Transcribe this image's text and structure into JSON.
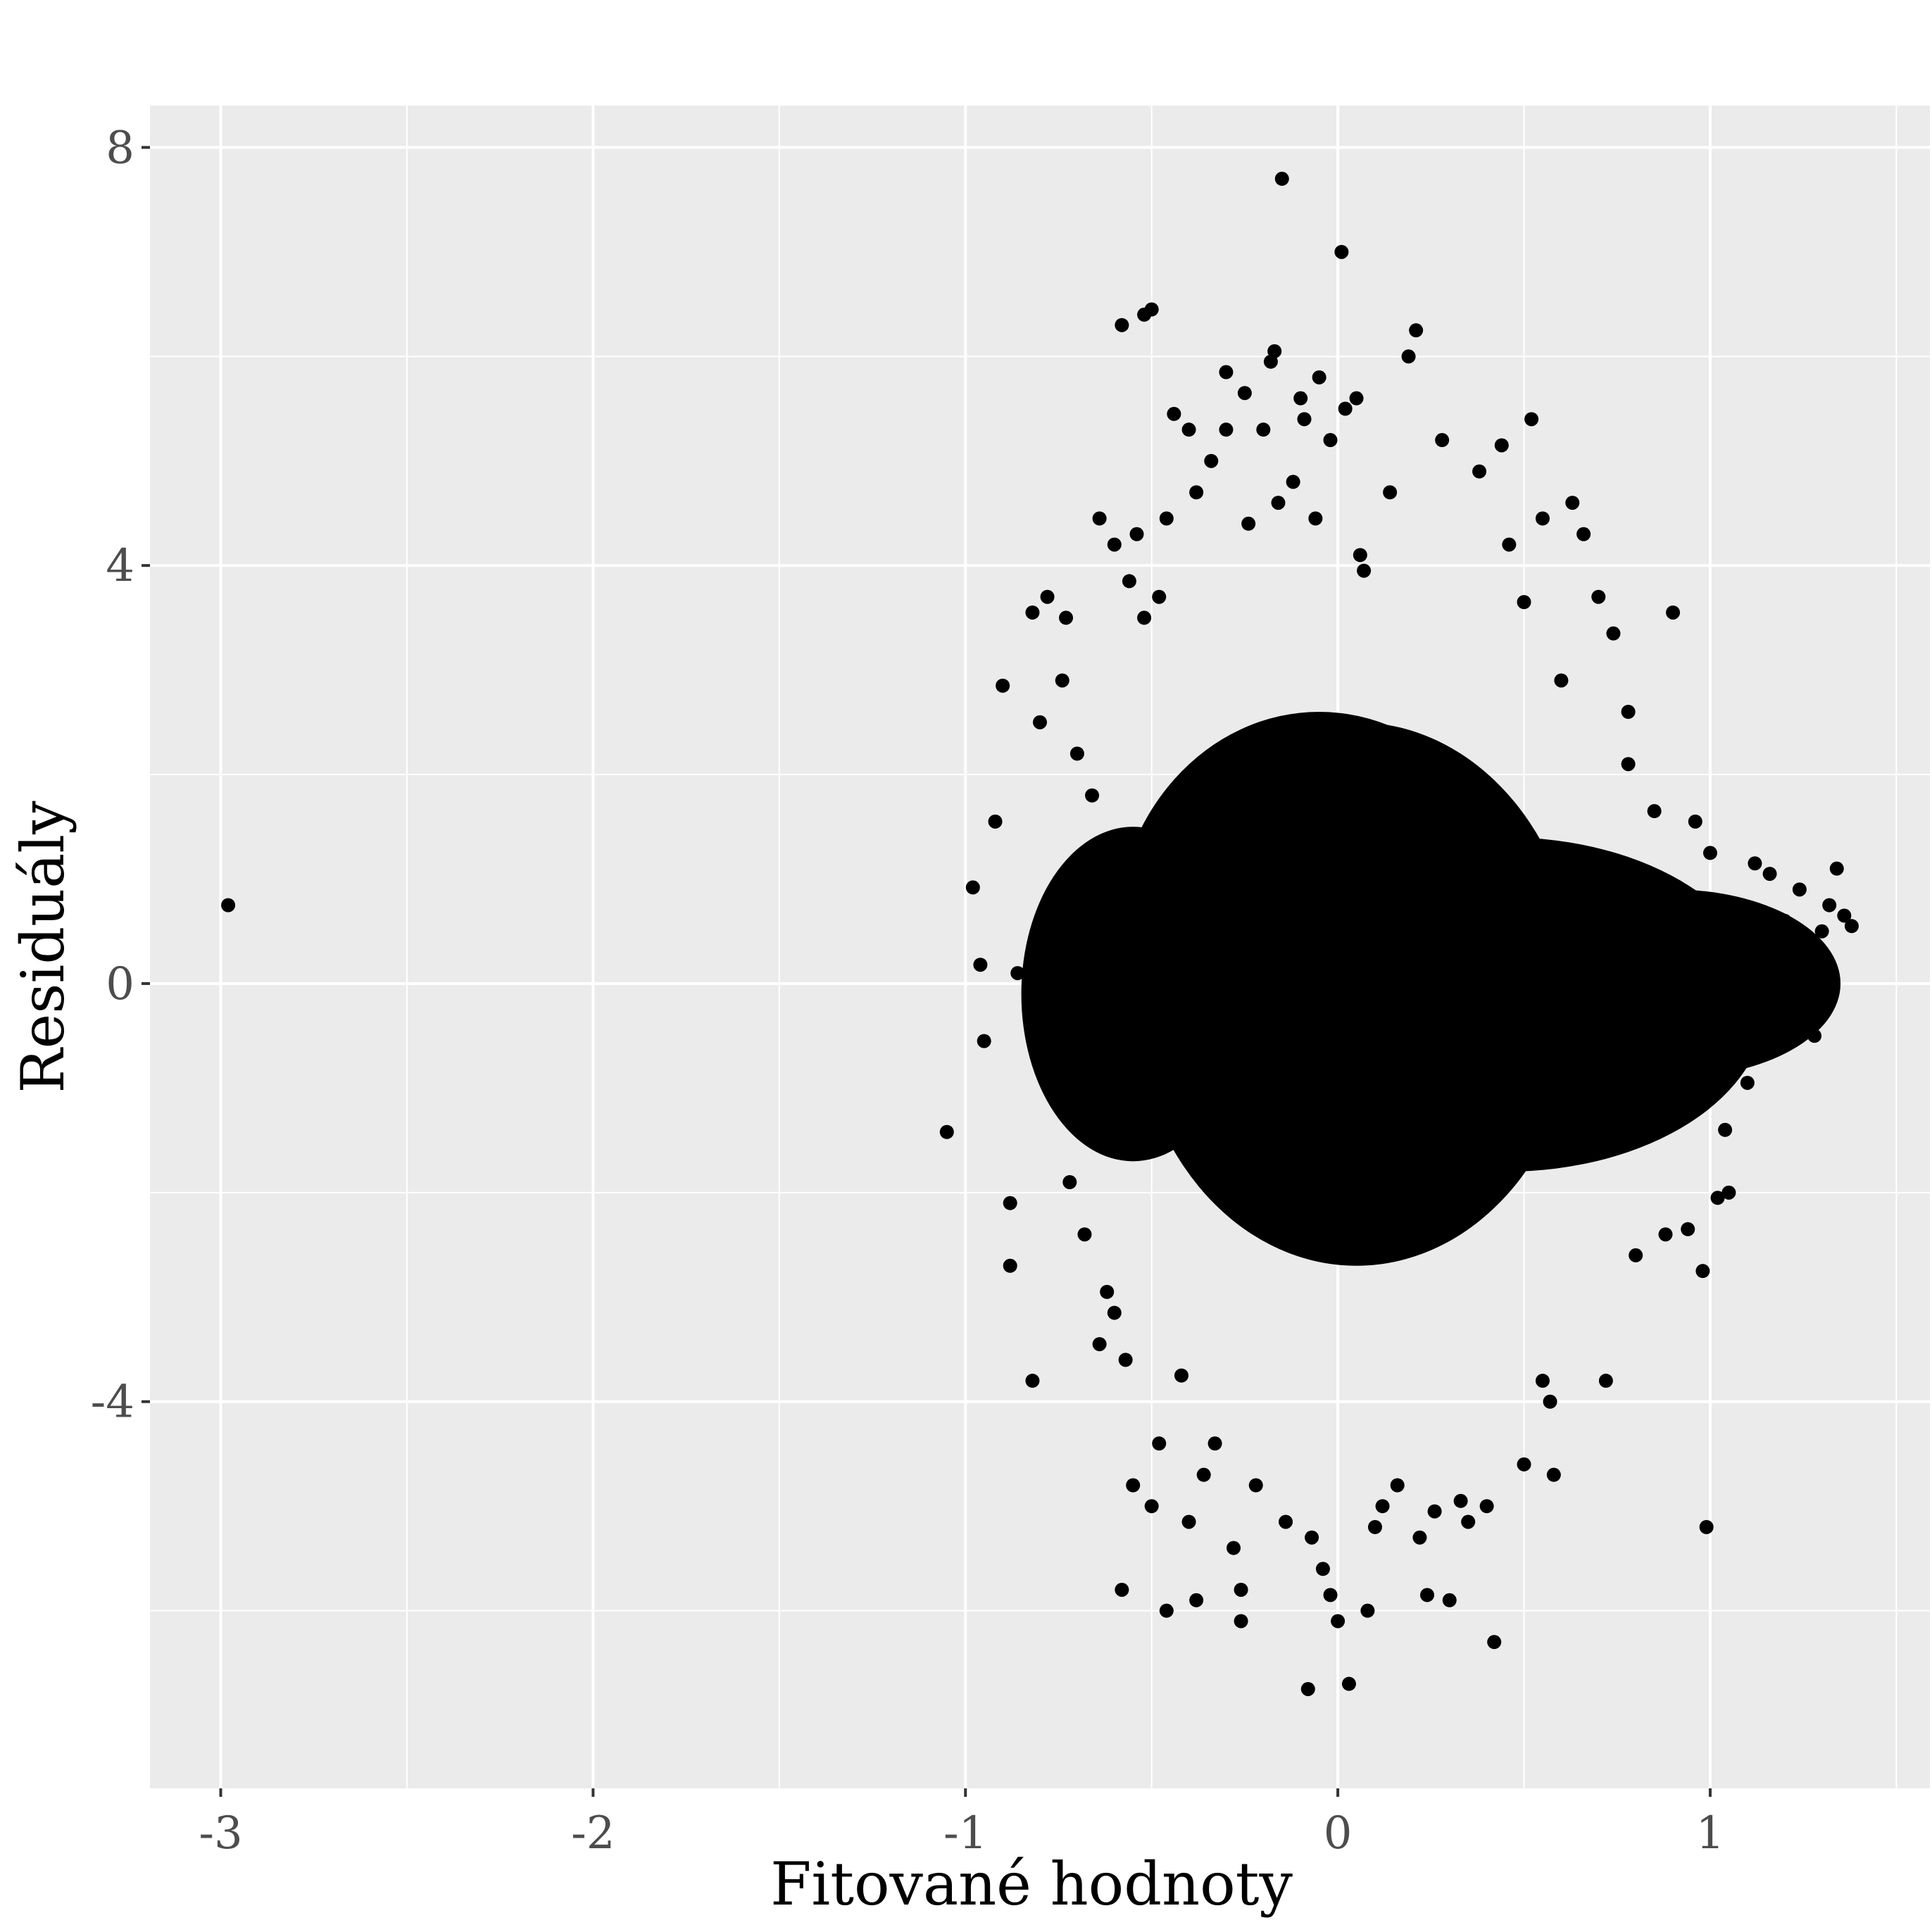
{
  "chart_data": {
    "type": "scatter",
    "title": "",
    "xlabel": "Fitované hodnoty",
    "ylabel": "Residuály",
    "xlim": [
      -3.19,
      1.59
    ],
    "ylim": [
      -7.7,
      8.4
    ],
    "x_ticks": [
      -3,
      -2,
      -1,
      0,
      1
    ],
    "x_tick_labels": [
      "-3",
      "-2",
      "-1",
      "0",
      "1"
    ],
    "y_ticks": [
      -4,
      0,
      4,
      8
    ],
    "y_tick_labels": [
      "-4",
      "0",
      "4",
      "8"
    ],
    "grid": true,
    "legend": "none",
    "colors": {
      "panel_background": "#ebebeb",
      "grid": "#ffffff",
      "point": "#000000",
      "tick_label": "#4d4d4d"
    },
    "dense_cloud": [
      {
        "cx": 0.05,
        "cy": -0.1,
        "rx": 0.6,
        "ry": 2.6
      },
      {
        "cx": -0.05,
        "cy": 0.4,
        "rx": 0.55,
        "ry": 2.2
      },
      {
        "cx": 0.45,
        "cy": -0.2,
        "rx": 0.7,
        "ry": 1.6
      },
      {
        "cx": 0.9,
        "cy": 0.0,
        "rx": 0.45,
        "ry": 0.9
      },
      {
        "cx": -0.55,
        "cy": -0.1,
        "rx": 0.3,
        "ry": 1.6
      }
    ],
    "points": [
      [
        -2.98,
        0.75
      ],
      [
        -1.05,
        -1.42
      ],
      [
        -0.98,
        0.92
      ],
      [
        -0.96,
        0.18
      ],
      [
        -0.95,
        -0.55
      ],
      [
        -0.92,
        1.55
      ],
      [
        -0.9,
        2.85
      ],
      [
        -0.88,
        -2.1
      ],
      [
        -0.88,
        -2.7
      ],
      [
        -0.86,
        0.1
      ],
      [
        -0.82,
        3.55
      ],
      [
        -0.82,
        -3.8
      ],
      [
        -0.8,
        2.5
      ],
      [
        -0.78,
        3.7
      ],
      [
        -0.76,
        -0.9
      ],
      [
        -0.74,
        2.9
      ],
      [
        -0.73,
        3.5
      ],
      [
        -0.72,
        -1.9
      ],
      [
        -0.7,
        2.2
      ],
      [
        -0.68,
        -2.4
      ],
      [
        -0.66,
        1.8
      ],
      [
        -0.64,
        4.45
      ],
      [
        -0.64,
        -3.45
      ],
      [
        -0.62,
        -2.95
      ],
      [
        -0.6,
        4.2
      ],
      [
        -0.6,
        -3.15
      ],
      [
        -0.58,
        6.3
      ],
      [
        -0.58,
        -5.8
      ],
      [
        -0.57,
        -3.6
      ],
      [
        -0.56,
        3.85
      ],
      [
        -0.55,
        -4.8
      ],
      [
        -0.54,
        4.3
      ],
      [
        -0.52,
        3.5
      ],
      [
        -0.52,
        6.4
      ],
      [
        -0.5,
        6.45
      ],
      [
        -0.5,
        -5.0
      ],
      [
        -0.48,
        3.7
      ],
      [
        -0.48,
        -4.4
      ],
      [
        -0.46,
        -6.0
      ],
      [
        -0.46,
        4.45
      ],
      [
        -0.44,
        5.45
      ],
      [
        -0.42,
        -3.75
      ],
      [
        -0.4,
        5.3
      ],
      [
        -0.4,
        -5.15
      ],
      [
        -0.38,
        -5.9
      ],
      [
        -0.38,
        4.7
      ],
      [
        -0.36,
        -4.7
      ],
      [
        -0.34,
        5.0
      ],
      [
        -0.33,
        -4.4
      ],
      [
        -0.3,
        5.85
      ],
      [
        -0.3,
        5.3
      ],
      [
        -0.28,
        -5.4
      ],
      [
        -0.26,
        -5.8
      ],
      [
        -0.26,
        -6.1
      ],
      [
        -0.25,
        5.65
      ],
      [
        -0.24,
        4.4
      ],
      [
        -0.22,
        -4.8
      ],
      [
        -0.2,
        5.3
      ],
      [
        -0.18,
        5.95
      ],
      [
        -0.17,
        6.05
      ],
      [
        -0.16,
        4.6
      ],
      [
        -0.15,
        7.7
      ],
      [
        -0.14,
        -5.15
      ],
      [
        -0.12,
        4.8
      ],
      [
        -0.1,
        5.6
      ],
      [
        -0.09,
        5.4
      ],
      [
        -0.08,
        -6.75
      ],
      [
        -0.07,
        -5.3
      ],
      [
        -0.06,
        4.45
      ],
      [
        -0.05,
        5.8
      ],
      [
        -0.04,
        -5.6
      ],
      [
        -0.02,
        5.2
      ],
      [
        -0.02,
        -5.85
      ],
      [
        0.0,
        -6.1
      ],
      [
        0.01,
        7.0
      ],
      [
        0.02,
        5.5
      ],
      [
        0.03,
        -6.7
      ],
      [
        0.05,
        5.6
      ],
      [
        0.06,
        4.1
      ],
      [
        0.07,
        3.95
      ],
      [
        0.08,
        -6.0
      ],
      [
        0.1,
        -5.2
      ],
      [
        0.12,
        -5.0
      ],
      [
        0.14,
        4.7
      ],
      [
        0.16,
        -4.8
      ],
      [
        0.19,
        6.0
      ],
      [
        0.21,
        6.25
      ],
      [
        0.22,
        -5.3
      ],
      [
        0.24,
        -5.85
      ],
      [
        0.26,
        -5.05
      ],
      [
        0.28,
        5.2
      ],
      [
        0.3,
        -5.9
      ],
      [
        0.33,
        -4.95
      ],
      [
        0.35,
        -5.15
      ],
      [
        0.38,
        4.9
      ],
      [
        0.4,
        -5.0
      ],
      [
        0.42,
        -6.3
      ],
      [
        0.44,
        5.15
      ],
      [
        0.46,
        4.2
      ],
      [
        0.5,
        3.65
      ],
      [
        0.5,
        -4.6
      ],
      [
        0.52,
        5.4
      ],
      [
        0.55,
        4.45
      ],
      [
        0.55,
        -3.8
      ],
      [
        0.57,
        -4.0
      ],
      [
        0.58,
        -4.7
      ],
      [
        0.6,
        2.9
      ],
      [
        0.63,
        4.6
      ],
      [
        0.66,
        4.3
      ],
      [
        0.7,
        3.7
      ],
      [
        0.72,
        -3.8
      ],
      [
        0.74,
        3.35
      ],
      [
        0.78,
        2.6
      ],
      [
        0.78,
        2.1
      ],
      [
        0.8,
        -2.6
      ],
      [
        0.85,
        1.65
      ],
      [
        0.88,
        -2.4
      ],
      [
        0.9,
        3.55
      ],
      [
        0.94,
        -2.35
      ],
      [
        0.96,
        1.55
      ],
      [
        0.98,
        -2.75
      ],
      [
        0.99,
        -5.2
      ],
      [
        1.0,
        1.25
      ],
      [
        1.02,
        -2.05
      ],
      [
        1.04,
        -1.4
      ],
      [
        1.05,
        -2.0
      ],
      [
        1.08,
        -0.6
      ],
      [
        1.1,
        -0.95
      ],
      [
        1.12,
        1.15
      ],
      [
        1.14,
        -0.3
      ],
      [
        1.16,
        1.05
      ],
      [
        1.18,
        -0.45
      ],
      [
        1.2,
        0.6
      ],
      [
        1.22,
        -0.35
      ],
      [
        1.24,
        0.9
      ],
      [
        1.26,
        0.2
      ],
      [
        1.28,
        -0.5
      ],
      [
        1.3,
        0.5
      ],
      [
        1.32,
        0.75
      ],
      [
        1.34,
        1.1
      ],
      [
        1.36,
        0.65
      ],
      [
        1.38,
        0.55
      ]
    ]
  }
}
